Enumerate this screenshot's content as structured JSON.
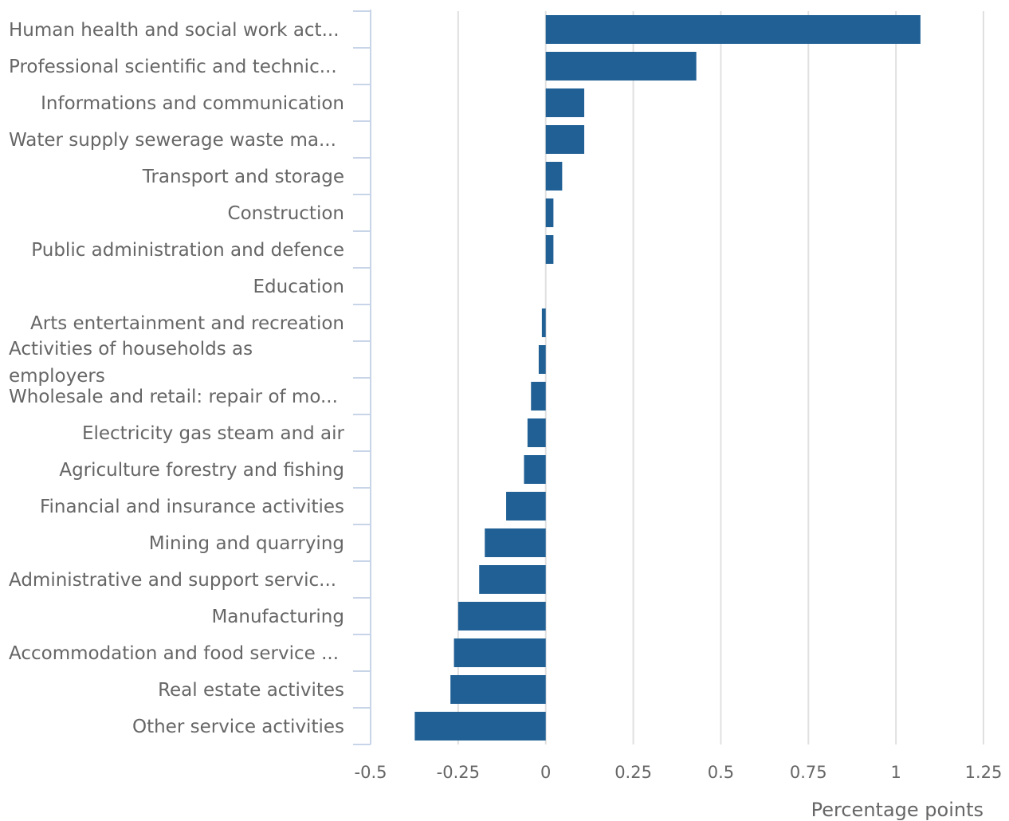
{
  "chart_data": {
    "type": "bar",
    "orientation": "horizontal",
    "categories": [
      "Human health and social work act...",
      "Professional scientific and technic...",
      "Informations and communication",
      "Water supply sewerage waste ma...",
      "Transport and storage",
      "Construction",
      "Public administration and defence",
      "Education",
      "Arts entertainment and recreation",
      "Activities of households as employers",
      "Wholesale and retail: repair of mo...",
      "Electricity gas steam and air",
      "Agriculture forestry and fishing",
      "Financial and insurance activities",
      "Mining and quarrying",
      "Administrative and support servic...",
      "Manufacturing",
      "Accommodation and food service ...",
      "Real estate activites",
      "Other service activities"
    ],
    "values": [
      1.07,
      0.43,
      0.11,
      0.11,
      0.047,
      0.022,
      0.022,
      0,
      -0.011,
      -0.02,
      -0.042,
      -0.052,
      -0.062,
      -0.113,
      -0.174,
      -0.19,
      -0.25,
      -0.262,
      -0.272,
      -0.374
    ],
    "xlabel": "Percentage points",
    "ylabel": "",
    "xlim": [
      -0.5,
      1.25
    ],
    "ticks": [
      "-0.5",
      "-0.25",
      "0",
      "0.25",
      "0.5",
      "0.75",
      "1",
      "1.25"
    ],
    "tick_values": [
      -0.5,
      -0.25,
      0,
      0.25,
      0.5,
      0.75,
      1,
      1.25
    ],
    "grid": true,
    "bar_color": "#206095",
    "grid_color": "#e0e0e0",
    "axis_color": "#c8d4e8"
  }
}
